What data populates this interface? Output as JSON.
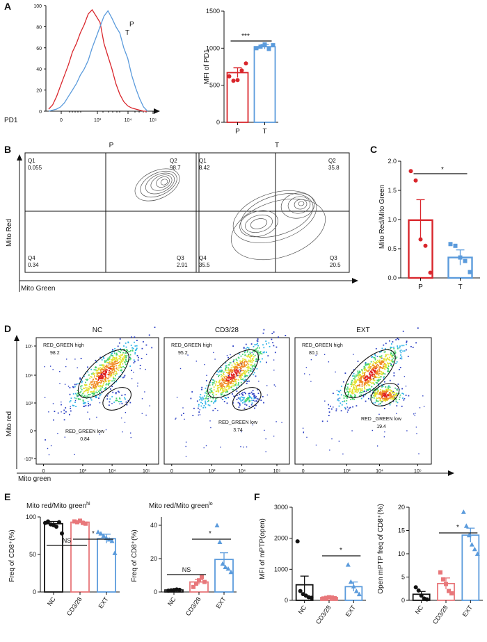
{
  "colors": {
    "P": "#d9262c",
    "T": "#5b9bdc",
    "NC": "#111111",
    "CD3": "#e8777a",
    "EXT": "#5b9bdc",
    "contour": "#555555"
  },
  "panel_letters": [
    "A",
    "B",
    "C",
    "D",
    "E",
    "F"
  ],
  "A": {
    "hist": {
      "xlabel": "PD1",
      "legend": [
        "P",
        "T"
      ],
      "yticks": [
        "0",
        "20",
        "40",
        "60",
        "80",
        "100"
      ],
      "xticks": [
        "0",
        "10³",
        "10⁴",
        "10⁵"
      ]
    },
    "bar": {
      "ylabel": "MFI of PD1",
      "yticks": [
        "0",
        "500",
        "1000",
        "1500"
      ],
      "categories": [
        "P",
        "T"
      ],
      "sig": "***"
    }
  },
  "B": {
    "xlabel": "Mito Green",
    "ylabel": "Mito Red",
    "plots": [
      {
        "title": "P",
        "q1": "Q1",
        "q1v": "0.055",
        "q2": "Q2",
        "q2v": "98.7",
        "q3": "Q3",
        "q3v": "2.91",
        "q4": "Q4",
        "q4v": "0.34"
      },
      {
        "title": "T",
        "q1": "Q1",
        "q1v": "8.42",
        "q2": "Q2",
        "q2v": "35.8",
        "q3": "Q3",
        "q3v": "20.5",
        "q4": "Q4",
        "q4v": "35.5"
      }
    ]
  },
  "C": {
    "ylabel": "Mito Red/Mito Green",
    "yticks": [
      "0.0",
      "0.5",
      "1.0",
      "1.5",
      "2.0"
    ],
    "categories": [
      "P",
      "T"
    ],
    "sig": "*"
  },
  "D": {
    "xlabel": "Mito green",
    "ylabel": "Mito red",
    "yticks": [
      "10⁵",
      "10⁴",
      "10³",
      "0",
      "-10³"
    ],
    "xticks": [
      "0",
      "10³",
      "10⁴",
      "10⁵"
    ],
    "plots": [
      {
        "title": "NC",
        "high_label": "RED_GREEN high",
        "high": "98.2",
        "low_label": "RED_GREEN low",
        "low": "0.84"
      },
      {
        "title": "CD3/28",
        "high_label": "RED_GREEN high",
        "high": "95.2",
        "low_label": "RED_GREEN low",
        "low": "3.74"
      },
      {
        "title": "EXT",
        "high_label": "RED_GREEN high",
        "high": "80.1",
        "low_label": "RED _GREEN low",
        "low": "19.4"
      }
    ]
  },
  "E": {
    "left": {
      "title": "Mito red/Mito green",
      "title_sup": "hi",
      "ylabel": "Freq of CD8⁺(%)",
      "yticks": [
        "0",
        "50",
        "100"
      ],
      "ns": "NS",
      "sig": "*"
    },
    "right": {
      "title": "Mito red/Mito green",
      "title_sup": "lo",
      "ylabel": "Freq of CD8⁺(%)",
      "yticks": [
        "0",
        "20",
        "40"
      ],
      "ns": "NS",
      "sig": "*"
    },
    "categories": [
      "NC",
      "CD3/28",
      "EXT"
    ]
  },
  "F": {
    "left": {
      "ylabel": "MFI of mPTP(open)",
      "yticks": [
        "0",
        "1000",
        "2000",
        "3000"
      ],
      "sig": "*"
    },
    "right": {
      "ylabel": "Open mPTP freq of CD8⁺(%)",
      "yticks": [
        "0",
        "5",
        "10",
        "15",
        "20"
      ],
      "sig": "*"
    },
    "categories": [
      "NC",
      "CD3/28",
      "EXT"
    ]
  },
  "chart_data": [
    {
      "id": "A_hist",
      "type": "line",
      "xlabel": "PD1",
      "ylim": [
        0,
        100
      ],
      "series": [
        {
          "name": "P",
          "x": [
            0,
            4,
            8,
            12,
            16,
            20,
            24,
            28,
            32,
            36,
            40,
            44,
            48,
            52,
            56,
            60,
            64,
            68,
            72,
            76,
            80,
            84,
            88,
            92,
            96,
            100
          ],
          "values": [
            2,
            6,
            14,
            24,
            34,
            44,
            56,
            64,
            74,
            82,
            92,
            96,
            90,
            84,
            64,
            52,
            40,
            26,
            16,
            9,
            5,
            3,
            2,
            1,
            0,
            0
          ]
        },
        {
          "name": "T",
          "x": [
            0,
            4,
            8,
            12,
            16,
            20,
            24,
            28,
            32,
            36,
            40,
            44,
            48,
            52,
            56,
            60,
            64,
            68,
            72,
            76,
            80,
            84,
            88,
            92,
            96,
            100
          ],
          "values": [
            0,
            1,
            2,
            4,
            8,
            14,
            20,
            26,
            34,
            40,
            48,
            60,
            70,
            80,
            90,
            95,
            88,
            80,
            74,
            60,
            50,
            34,
            22,
            12,
            4,
            0
          ]
        }
      ]
    },
    {
      "id": "A_bar",
      "type": "bar",
      "ylabel": "MFI of PD1",
      "ylim": [
        0,
        1500
      ],
      "categories": [
        "P",
        "T"
      ],
      "values": [
        670,
        1020
      ],
      "errors": [
        65,
        30
      ],
      "points": [
        [
          620,
          560,
          570,
          700,
          795
        ],
        [
          1000,
          1020,
          1050,
          990,
          1040
        ]
      ]
    },
    {
      "id": "C",
      "type": "bar",
      "ylabel": "Mito Red/Mito Green",
      "ylim": [
        0,
        2.0
      ],
      "categories": [
        "P",
        "T"
      ],
      "values": [
        0.99,
        0.35
      ],
      "errors": [
        0.35,
        0.13
      ],
      "points": [
        [
          1.83,
          1.67,
          0.66,
          0.55,
          0.09
        ],
        [
          0.58,
          0.55,
          0.35,
          0.29,
          0.1
        ]
      ]
    },
    {
      "id": "E_hi",
      "type": "bar",
      "ylabel": "Freq of CD8⁺(%)",
      "ylim": [
        0,
        100
      ],
      "categories": [
        "NC",
        "CD3/28",
        "EXT"
      ],
      "values": [
        91,
        93,
        71
      ],
      "errors": [
        3,
        1.5,
        6
      ],
      "points": [
        [
          92,
          94,
          90,
          89,
          87,
          93,
          78
        ],
        [
          94,
          93,
          95,
          92,
          91
        ],
        [
          80,
          78,
          75,
          72,
          70,
          68,
          52
        ]
      ]
    },
    {
      "id": "E_lo",
      "type": "bar",
      "ylabel": "Freq of CD8⁺(%)",
      "ylim": [
        0,
        45
      ],
      "categories": [
        "NC",
        "CD3/28",
        "EXT"
      ],
      "values": [
        1.2,
        6,
        19.5
      ],
      "errors": [
        0.4,
        1.5,
        4
      ],
      "points": [
        [
          0.8,
          1,
          1.2,
          1.5,
          1.3
        ],
        [
          3,
          5,
          7,
          9,
          6
        ],
        [
          40,
          30,
          17,
          15,
          14,
          12
        ]
      ]
    },
    {
      "id": "F_left",
      "type": "bar",
      "ylabel": "MFI of mPTP(open)",
      "ylim": [
        0,
        3000
      ],
      "categories": [
        "NC",
        "CD3/28",
        "EXT"
      ],
      "values": [
        500,
        90,
        440
      ],
      "errors": [
        280,
        20,
        150
      ],
      "points": [
        [
          1900,
          300,
          200,
          150,
          100,
          80
        ],
        [
          60,
          80,
          100,
          90,
          70
        ],
        [
          1150,
          600,
          450,
          300,
          200
        ]
      ]
    },
    {
      "id": "F_right",
      "type": "bar",
      "ylabel": "Open mPTP freq of CD8⁺(%)",
      "ylim": [
        0,
        20
      ],
      "categories": [
        "NC",
        "CD3/28",
        "EXT"
      ],
      "values": [
        1.3,
        3.6,
        14
      ],
      "errors": [
        0.6,
        1.2,
        1.5
      ],
      "points": [
        [
          2.8,
          2.1,
          1,
          0.4,
          0.2
        ],
        [
          6,
          4.5,
          3.5,
          2,
          1.5
        ],
        [
          19,
          16,
          14,
          12,
          11,
          10
        ]
      ]
    }
  ]
}
